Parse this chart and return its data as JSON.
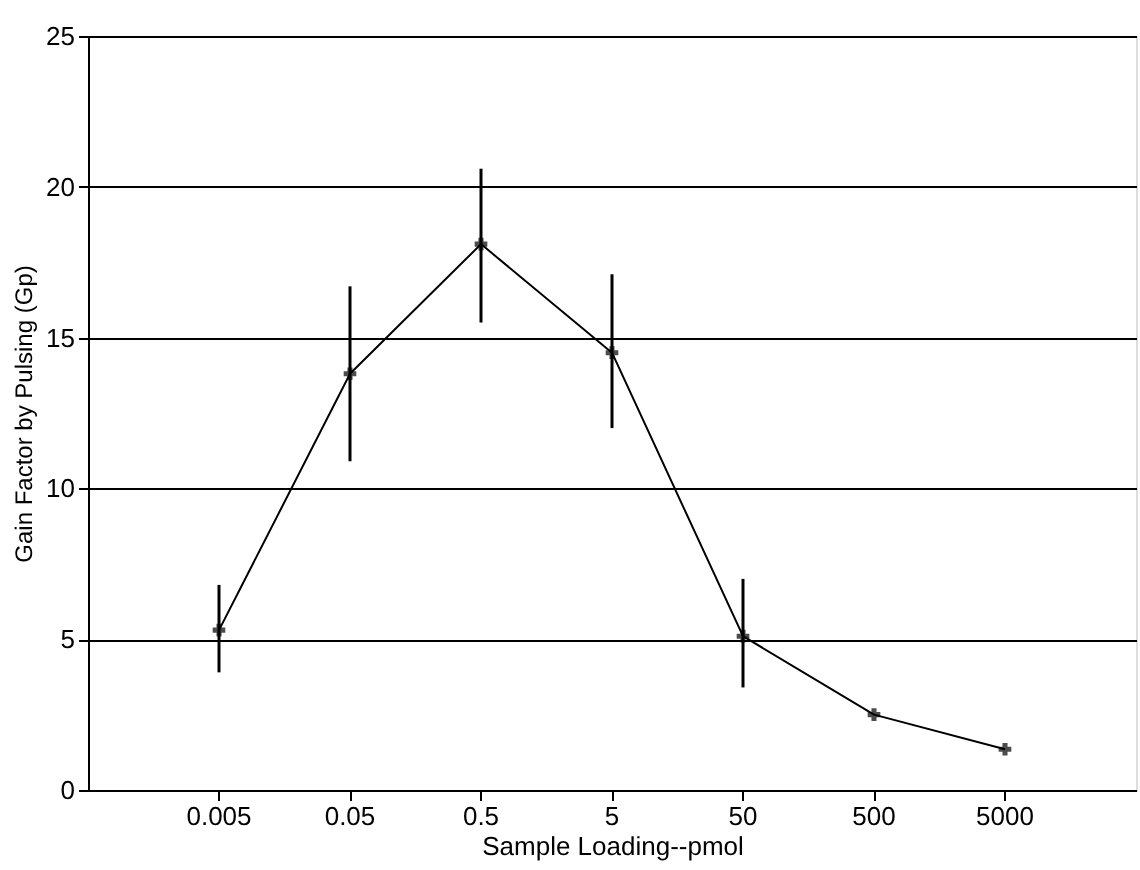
{
  "chart_data": {
    "type": "line",
    "xlabel": "Sample Loading--pmol",
    "ylabel": "Gain Factor by Pulsing (Gp)",
    "categories": [
      "0.005",
      "0.05",
      "0.5",
      "5",
      "50",
      "500",
      "5000"
    ],
    "series": [
      {
        "color": "#000000",
        "values": [
          5.3,
          13.8,
          18.1,
          14.5,
          5.1,
          2.5,
          1.35
        ],
        "errors": [
          [
            3.9,
            6.8
          ],
          [
            10.9,
            16.7
          ],
          [
            15.5,
            20.6
          ],
          [
            12.0,
            17.1
          ],
          [
            3.4,
            7.0
          ],
          null,
          null
        ]
      }
    ],
    "ylim": [
      0,
      25
    ],
    "yticks": [
      0,
      5,
      10,
      15,
      20,
      25
    ],
    "grid": "y",
    "marker": "cross",
    "line_style": "solid"
  }
}
